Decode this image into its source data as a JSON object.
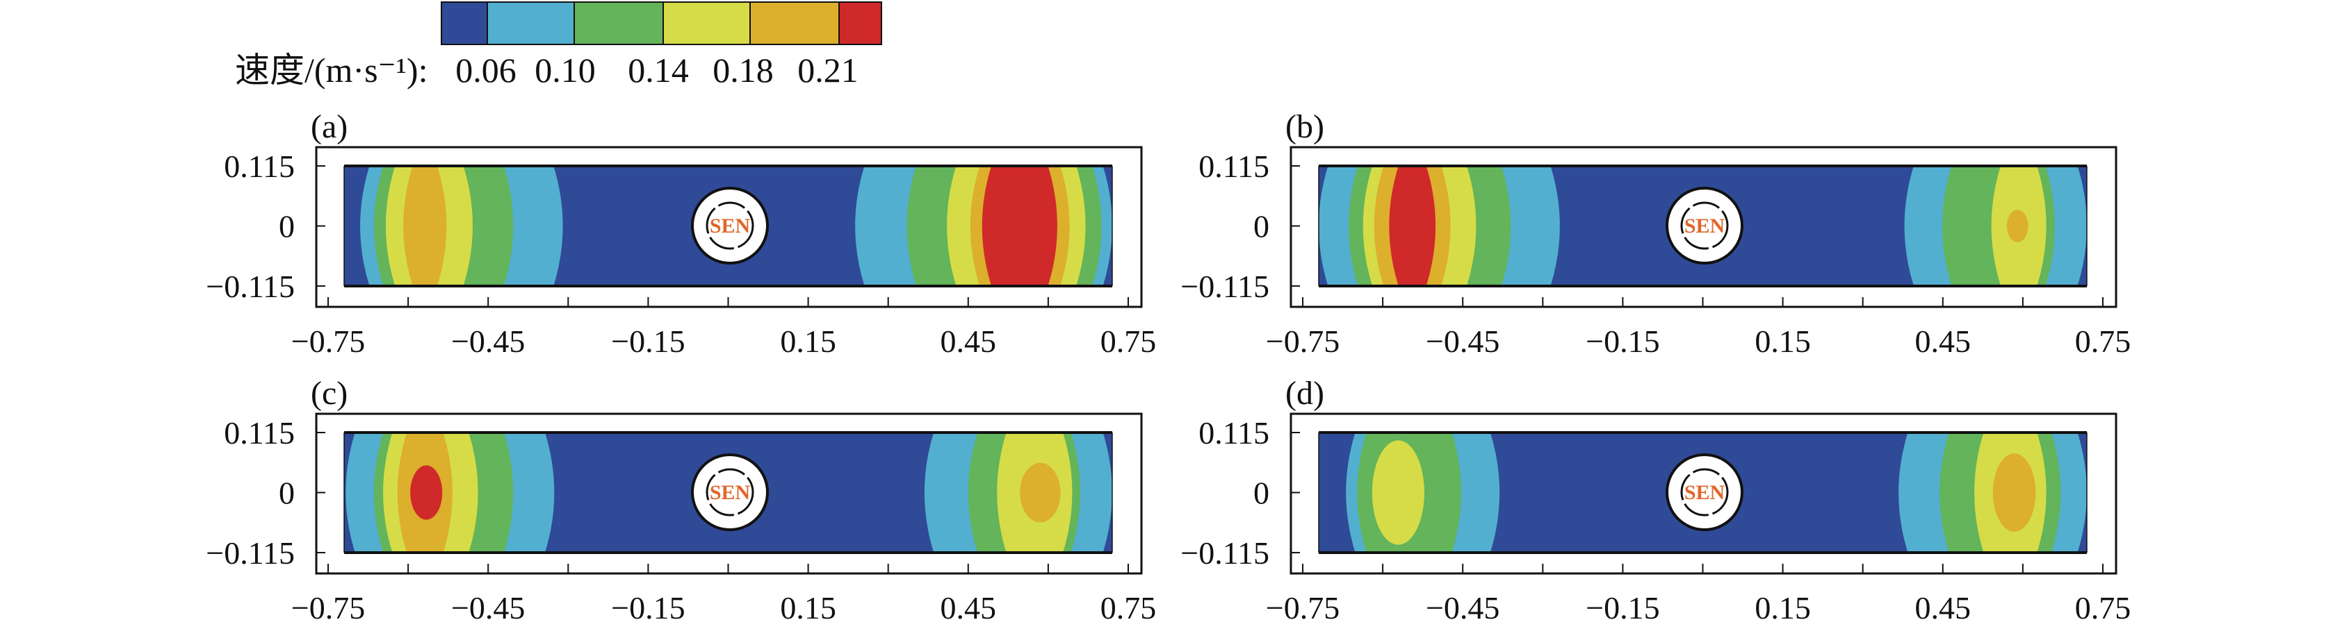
{
  "chart_data": [
    {
      "type": "heatmap",
      "panel_label": "(a)",
      "xlim": [
        -0.72,
        0.72
      ],
      "ylim": [
        -0.115,
        0.115
      ],
      "x_ticks": [
        -0.75,
        -0.45,
        -0.15,
        0.15,
        0.45,
        0.75
      ],
      "x_tick_labels": [
        "−0.75",
        "−0.45",
        "−0.15",
        "0.15",
        "0.45",
        "0.75"
      ],
      "y_ticks": [
        0.115,
        0,
        -0.115
      ],
      "y_tick_labels": [
        "0.115",
        "0",
        "−0.115"
      ],
      "center_marker": "SEN",
      "contour_regions": [
        {
          "level": 1,
          "x": [
            -0.69,
            -0.31
          ]
        },
        {
          "level": 2,
          "x": [
            -0.664,
            -0.403
          ]
        },
        {
          "level": 3,
          "x": [
            -0.642,
            -0.479
          ]
        },
        {
          "level": 4,
          "x": [
            -0.609,
            -0.528
          ]
        },
        {
          "level": 1,
          "x": [
            0.238,
            0.72
          ]
        },
        {
          "level": 2,
          "x": [
            0.335,
            0.7
          ]
        },
        {
          "level": 3,
          "x": [
            0.41,
            0.67
          ]
        },
        {
          "level": 4,
          "x": [
            0.454,
            0.64
          ]
        },
        {
          "level": 5,
          "x": [
            0.476,
            0.617
          ]
        }
      ]
    },
    {
      "type": "heatmap",
      "panel_label": "(b)",
      "xlim": [
        -0.72,
        0.72
      ],
      "ylim": [
        -0.115,
        0.115
      ],
      "x_ticks": [
        -0.75,
        -0.45,
        -0.15,
        0.15,
        0.45,
        0.75
      ],
      "x_tick_labels": [
        "−0.75",
        "−0.45",
        "−0.15",
        "0.15",
        "0.45",
        "0.75"
      ],
      "y_ticks": [
        0.115,
        0,
        -0.115
      ],
      "y_tick_labels": [
        "0.115",
        "0",
        "−0.115"
      ],
      "center_marker": "SEN",
      "contour_regions": [
        {
          "level": 1,
          "x": [
            -0.72,
            -0.268
          ]
        },
        {
          "level": 2,
          "x": [
            -0.664,
            -0.36
          ]
        },
        {
          "level": 3,
          "x": [
            -0.637,
            -0.425
          ]
        },
        {
          "level": 4,
          "x": [
            -0.616,
            -0.473
          ]
        },
        {
          "level": 5,
          "x": [
            -0.588,
            -0.501
          ]
        },
        {
          "level": 1,
          "x": [
            0.378,
            0.72
          ]
        },
        {
          "level": 2,
          "x": [
            0.449,
            0.66
          ]
        },
        {
          "level": 3,
          "x": [
            0.541,
            0.644
          ]
        },
        {
          "level": 4,
          "x": [
            0.57,
            0.61
          ],
          "y": [
            -0.031,
            0.031
          ],
          "shape": "ellipse"
        }
      ]
    },
    {
      "type": "heatmap",
      "panel_label": "(c)",
      "xlim": [
        -0.72,
        0.72
      ],
      "ylim": [
        -0.115,
        0.115
      ],
      "x_ticks": [
        -0.75,
        -0.45,
        -0.15,
        0.15,
        0.45,
        0.75
      ],
      "x_tick_labels": [
        "−0.75",
        "−0.45",
        "−0.15",
        "0.15",
        "0.45",
        "0.75"
      ],
      "y_ticks": [
        0.115,
        0,
        -0.115
      ],
      "y_tick_labels": [
        "0.115",
        "0",
        "−0.115"
      ],
      "center_marker": "SEN",
      "contour_regions": [
        {
          "level": 1,
          "x": [
            -0.717,
            -0.326
          ]
        },
        {
          "level": 2,
          "x": [
            -0.664,
            -0.403
          ]
        },
        {
          "level": 3,
          "x": [
            -0.647,
            -0.469
          ]
        },
        {
          "level": 4,
          "x": [
            -0.62,
            -0.517
          ]
        },
        {
          "level": 5,
          "x": [
            -0.596,
            -0.536
          ],
          "y": [
            -0.052,
            0.052
          ],
          "shape": "ellipse"
        },
        {
          "level": 1,
          "x": [
            0.368,
            0.72
          ]
        },
        {
          "level": 2,
          "x": [
            0.45,
            0.66
          ]
        },
        {
          "level": 3,
          "x": [
            0.504,
            0.645
          ]
        },
        {
          "level": 4,
          "x": [
            0.547,
            0.623
          ],
          "y": [
            -0.057,
            0.057
          ],
          "shape": "ellipse"
        }
      ]
    },
    {
      "type": "heatmap",
      "panel_label": "(d)",
      "xlim": [
        -0.72,
        0.72
      ],
      "ylim": [
        -0.115,
        0.115
      ],
      "x_ticks": [
        -0.75,
        -0.45,
        -0.15,
        0.15,
        0.45,
        0.75
      ],
      "x_tick_labels": [
        "−0.75",
        "−0.45",
        "−0.15",
        "0.15",
        "0.45",
        "0.75"
      ],
      "y_ticks": [
        0.115,
        0,
        -0.115
      ],
      "y_tick_labels": [
        "0.115",
        "0",
        "−0.115"
      ],
      "center_marker": "SEN",
      "contour_regions": [
        {
          "level": 1,
          "x": [
            -0.669,
            -0.381
          ]
        },
        {
          "level": 2,
          "x": [
            -0.648,
            -0.453
          ]
        },
        {
          "level": 3,
          "x": [
            -0.62,
            -0.522
          ],
          "y": [
            -0.1,
            0.1
          ],
          "shape": "ellipse"
        },
        {
          "level": 1,
          "x": [
            0.367,
            0.72
          ]
        },
        {
          "level": 2,
          "x": [
            0.444,
            0.671
          ]
        },
        {
          "level": 3,
          "x": [
            0.509,
            0.644
          ]
        },
        {
          "level": 4,
          "x": [
            0.544,
            0.624
          ],
          "y": [
            -0.075,
            0.075
          ],
          "shape": "ellipse"
        }
      ]
    }
  ],
  "legend": {
    "label": "速度/(m·s⁻¹):",
    "tick_labels": [
      "0.06",
      "0.10",
      "0.14",
      "0.18",
      "0.21"
    ],
    "colors": [
      "#2f4a97",
      "#52afd0",
      "#63b45a",
      "#d5dc47",
      "#dcaf2d",
      "#cf292a"
    ]
  },
  "marker_color": "#e0672a"
}
